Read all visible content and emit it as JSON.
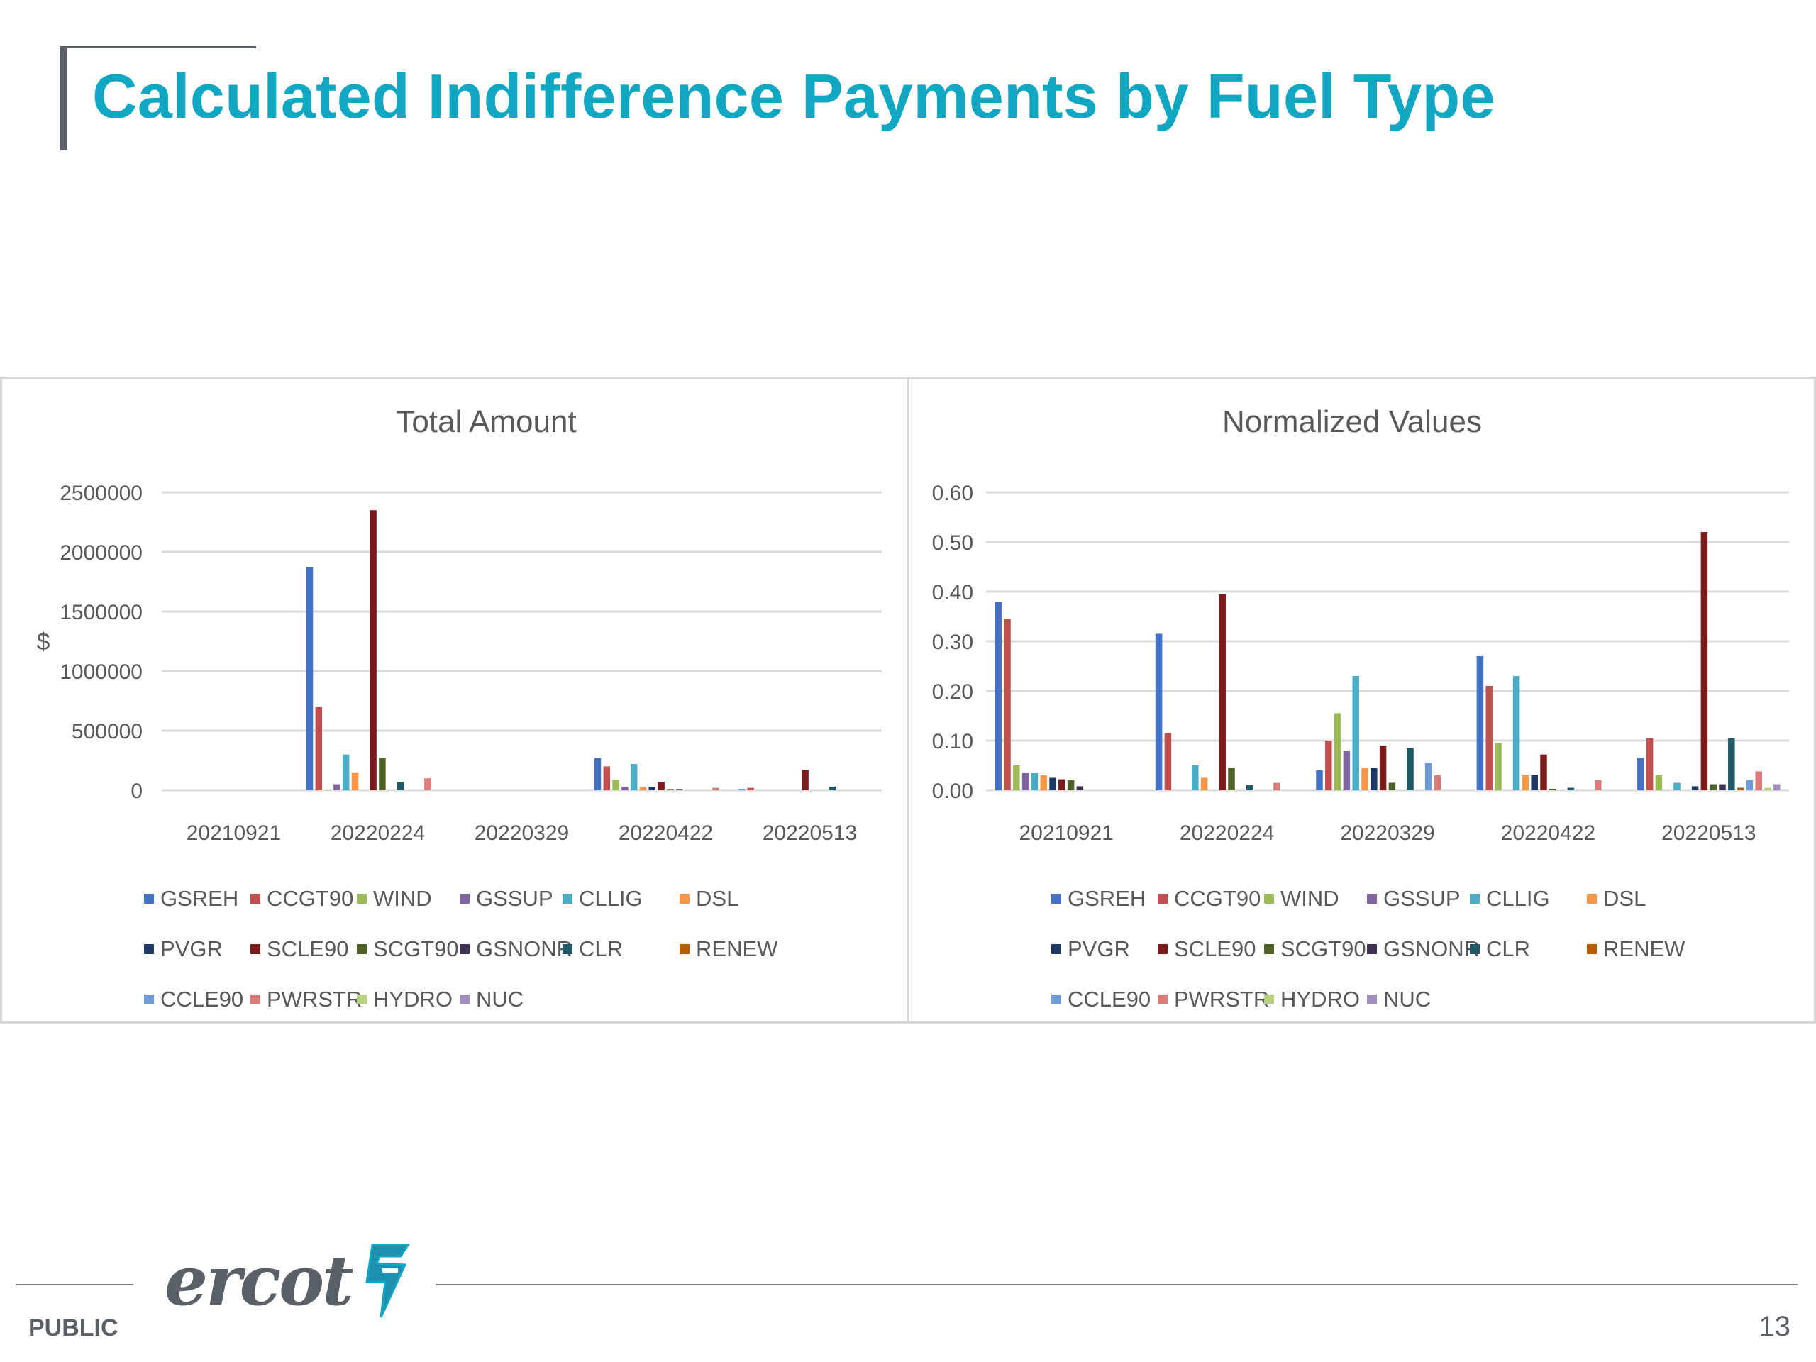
{
  "slide": {
    "title": "Calculated Indifference Payments by Fuel Type",
    "footer_label": "PUBLIC",
    "logo_text": "ercot",
    "page_number": "13",
    "title_color": "#10a7c2"
  },
  "series_colors": {
    "GSREH": "#4472c4",
    "CCGT90": "#c0504d",
    "WIND": "#9bbb59",
    "GSSUP": "#8064a2",
    "CLLIG": "#4bacc6",
    "DSL": "#f79646",
    "PVGR": "#1f3864",
    "SCLE90": "#7b1c1c",
    "SCGT90": "#4f6228",
    "GSNONR": "#3f3151",
    "CLR": "#215967",
    "RENEW": "#b85c00",
    "CCLE90": "#6f9bd8",
    "PWRSTR": "#d97b79",
    "HYDRO": "#b5d07e",
    "NUC": "#a28fc0"
  },
  "chart_data": [
    {
      "type": "bar",
      "title": "Total Amount",
      "ylabel": "$",
      "xlabel": "",
      "ylim": [
        0,
        2500000
      ],
      "yticks": [
        "0",
        "500000",
        "1000000",
        "1500000",
        "2000000",
        "2500000"
      ],
      "ytick_values": [
        0,
        500000,
        1000000,
        1500000,
        2000000,
        2500000
      ],
      "categories": [
        "20210921",
        "20220224",
        "20220329",
        "20220422",
        "20220513"
      ],
      "grid": true,
      "legend_position": "bottom",
      "series": [
        {
          "name": "GSREH",
          "values": [
            0,
            1870000,
            0,
            270000,
            10000
          ]
        },
        {
          "name": "CCGT90",
          "values": [
            0,
            700000,
            0,
            200000,
            20000
          ]
        },
        {
          "name": "WIND",
          "values": [
            0,
            5000,
            0,
            90000,
            0
          ]
        },
        {
          "name": "GSSUP",
          "values": [
            0,
            50000,
            0,
            30000,
            0
          ]
        },
        {
          "name": "CLLIG",
          "values": [
            0,
            300000,
            0,
            220000,
            0
          ]
        },
        {
          "name": "DSL",
          "values": [
            0,
            150000,
            0,
            30000,
            0
          ]
        },
        {
          "name": "PVGR",
          "values": [
            0,
            0,
            0,
            30000,
            0
          ]
        },
        {
          "name": "SCLE90",
          "values": [
            0,
            2350000,
            0,
            70000,
            170000
          ]
        },
        {
          "name": "SCGT90",
          "values": [
            0,
            270000,
            0,
            10000,
            0
          ]
        },
        {
          "name": "GSNONR",
          "values": [
            0,
            5000,
            0,
            10000,
            0
          ]
        },
        {
          "name": "CLR",
          "values": [
            0,
            70000,
            0,
            0,
            30000
          ]
        },
        {
          "name": "RENEW",
          "values": [
            0,
            0,
            0,
            0,
            0
          ]
        },
        {
          "name": "CCLE90",
          "values": [
            0,
            0,
            0,
            0,
            0
          ]
        },
        {
          "name": "PWRSTR",
          "values": [
            0,
            100000,
            0,
            20000,
            0
          ]
        },
        {
          "name": "HYDRO",
          "values": [
            0,
            0,
            0,
            0,
            0
          ]
        },
        {
          "name": "NUC",
          "values": [
            0,
            0,
            0,
            0,
            0
          ]
        }
      ]
    },
    {
      "type": "bar",
      "title": "Normalized Values",
      "ylabel": "",
      "xlabel": "",
      "ylim": [
        0,
        0.6
      ],
      "yticks": [
        "0.00",
        "0.10",
        "0.20",
        "0.30",
        "0.40",
        "0.50",
        "0.60"
      ],
      "ytick_values": [
        0,
        0.1,
        0.2,
        0.3,
        0.4,
        0.5,
        0.6
      ],
      "categories": [
        "20210921",
        "20220224",
        "20220329",
        "20220422",
        "20220513"
      ],
      "grid": true,
      "legend_position": "bottom",
      "series": [
        {
          "name": "GSREH",
          "values": [
            0.38,
            0.315,
            0.04,
            0.27,
            0.065
          ]
        },
        {
          "name": "CCGT90",
          "values": [
            0.345,
            0.115,
            0.1,
            0.21,
            0.105
          ]
        },
        {
          "name": "WIND",
          "values": [
            0.05,
            0,
            0.155,
            0.095,
            0.03
          ]
        },
        {
          "name": "GSSUP",
          "values": [
            0.035,
            0,
            0.08,
            0,
            0
          ]
        },
        {
          "name": "CLLIG",
          "values": [
            0.035,
            0.05,
            0.23,
            0.23,
            0.015
          ]
        },
        {
          "name": "DSL",
          "values": [
            0.03,
            0.025,
            0.045,
            0.03,
            0
          ]
        },
        {
          "name": "PVGR",
          "values": [
            0.025,
            0,
            0.045,
            0.03,
            0.008
          ]
        },
        {
          "name": "SCLE90",
          "values": [
            0.022,
            0.395,
            0.09,
            0.072,
            0.52
          ]
        },
        {
          "name": "SCGT90",
          "values": [
            0.02,
            0.045,
            0.015,
            0.003,
            0.012
          ]
        },
        {
          "name": "GSNONR",
          "values": [
            0.008,
            0,
            0,
            0,
            0.012
          ]
        },
        {
          "name": "CLR",
          "values": [
            0,
            0.01,
            0.085,
            0.005,
            0.105
          ]
        },
        {
          "name": "RENEW",
          "values": [
            0,
            0,
            0,
            0,
            0.005
          ]
        },
        {
          "name": "CCLE90",
          "values": [
            0,
            0,
            0.055,
            0,
            0.02
          ]
        },
        {
          "name": "PWRSTR",
          "values": [
            0,
            0.015,
            0.03,
            0.02,
            0.038
          ]
        },
        {
          "name": "HYDRO",
          "values": [
            0,
            0,
            0,
            0,
            0.005
          ]
        },
        {
          "name": "NUC",
          "values": [
            0,
            0,
            0,
            0,
            0.012
          ]
        }
      ]
    }
  ]
}
